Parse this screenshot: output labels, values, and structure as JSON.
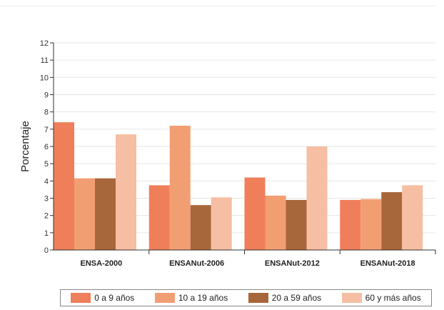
{
  "chart_data": {
    "type": "bar",
    "title": "",
    "xlabel": "",
    "ylabel": "Porcentaje",
    "ylim": [
      0,
      12
    ],
    "yticks": [
      0,
      1,
      2,
      3,
      4,
      5,
      6,
      7,
      8,
      9,
      10,
      11,
      12
    ],
    "categories": [
      "ENSA-2000",
      "ENSANut-2006",
      "ENSANut-2012",
      "ENSANut-2018"
    ],
    "series": [
      {
        "name": "0 a 9 años",
        "color": "#ef7f5a",
        "values": [
          7.4,
          3.75,
          4.2,
          2.9
        ]
      },
      {
        "name": "10 a 19 años",
        "color": "#f29e73",
        "values": [
          4.15,
          7.2,
          3.15,
          2.95
        ]
      },
      {
        "name": "20 a 59 años",
        "color": "#a8673a",
        "values": [
          4.15,
          2.6,
          2.9,
          3.35
        ]
      },
      {
        "name": "60 y más años",
        "color": "#f6bea3",
        "values": [
          6.7,
          3.05,
          6.0,
          3.75
        ]
      }
    ],
    "grid": true,
    "legend_position": "bottom"
  }
}
